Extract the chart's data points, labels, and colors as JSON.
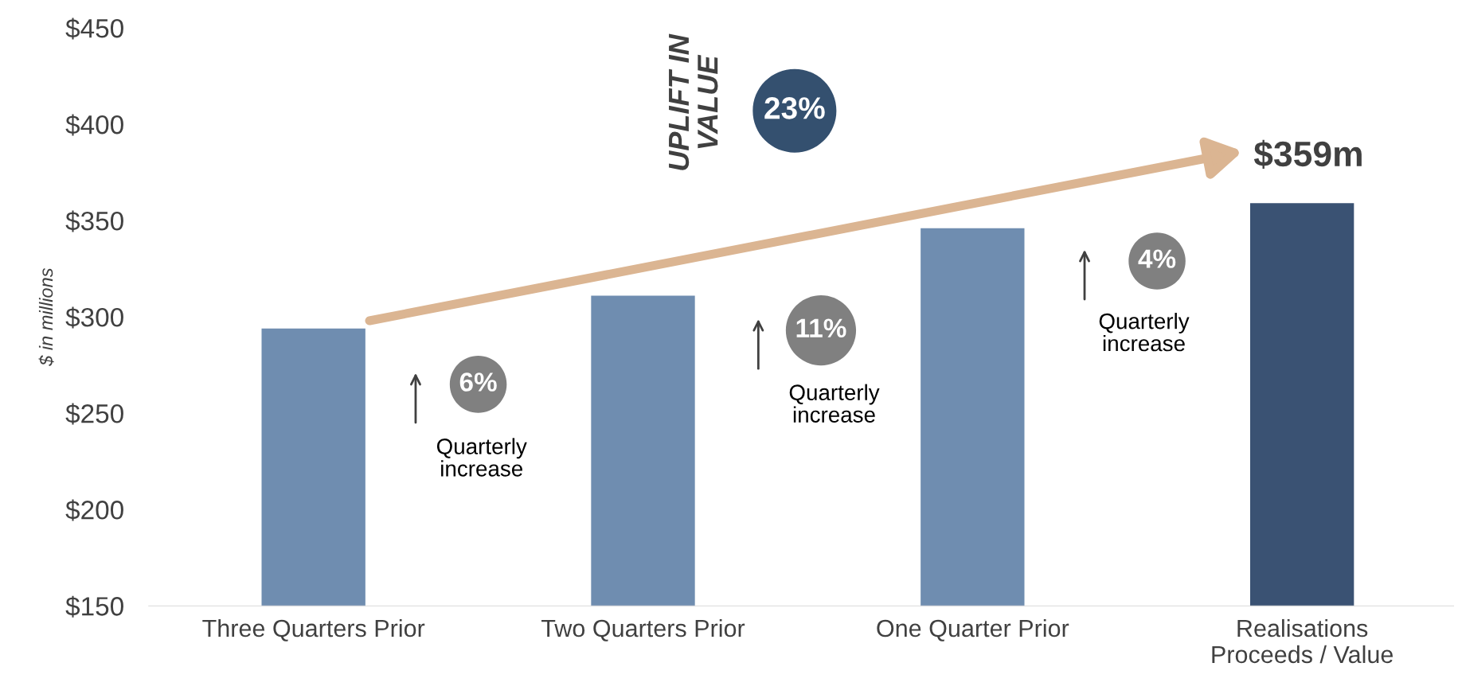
{
  "chart_data": {
    "type": "bar",
    "ylabel": "$ in millions",
    "categories": [
      "Three Quarters Prior",
      "Two Quarters Prior",
      "One Quarter Prior",
      "Realisations Proceeds / Value"
    ],
    "values": [
      294,
      311,
      346,
      359
    ],
    "colors": [
      "#6f8db0",
      "#6f8db0",
      "#6f8db0",
      "#3a5273"
    ],
    "ylim": [
      150,
      450
    ],
    "yticks": [
      {
        "value": 150,
        "label": "$150"
      },
      {
        "value": 200,
        "label": "$200"
      },
      {
        "value": 250,
        "label": "$250"
      },
      {
        "value": 300,
        "label": "$300"
      },
      {
        "value": 350,
        "label": "$350"
      },
      {
        "value": 400,
        "label": "$400"
      },
      {
        "value": 450,
        "label": "$450"
      }
    ],
    "grid": false,
    "legend": false,
    "annotations": [
      "UPLIFT IN VALUE",
      "23%",
      "$359m",
      "6%",
      "Quarterly increase",
      "11%",
      "Quarterly increase",
      "4%",
      "Quarterly increase"
    ]
  }
}
